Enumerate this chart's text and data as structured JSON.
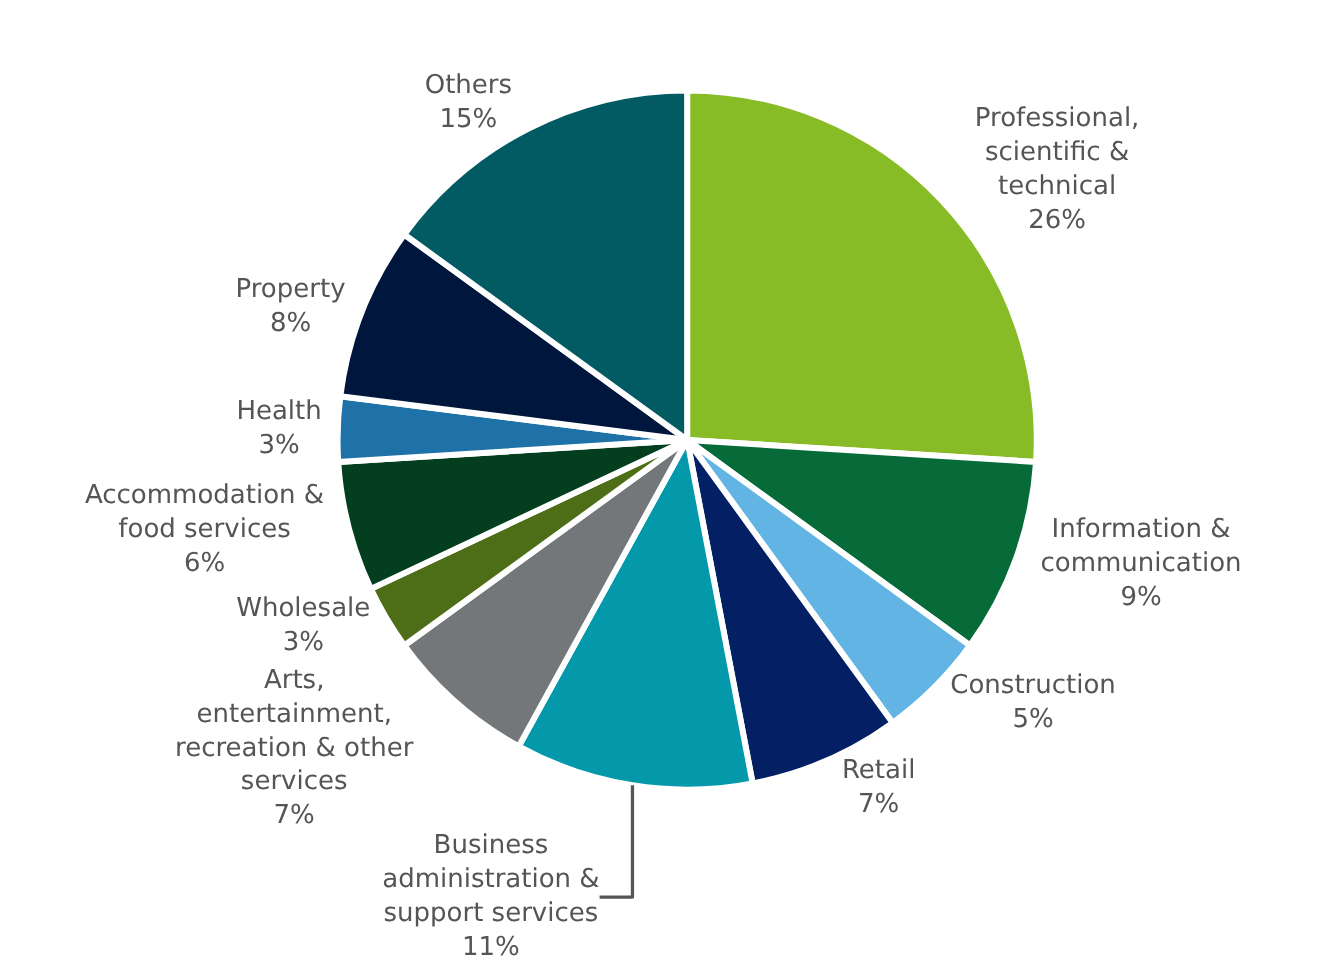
{
  "chart_data": {
    "type": "pie",
    "categories": [
      "Professional, scientific & technical",
      "Information & communication",
      "Construction",
      "Retail",
      "Business administration & support services",
      "Arts, entertainment, recreation & other services",
      "Wholesale",
      "Accommodation & food services",
      "Health",
      "Property",
      "Others"
    ],
    "values": [
      26,
      9,
      5,
      7,
      11,
      7,
      3,
      6,
      3,
      8,
      15
    ],
    "value_labels": [
      "26%",
      "9%",
      "5%",
      "7%",
      "11%",
      "7%",
      "3%",
      "6%",
      "3%",
      "8%",
      "15%"
    ],
    "colors": [
      "#88bc26",
      "#066b38",
      "#62b4e4",
      "#022063",
      "#0399aa",
      "#747779",
      "#4e6d17",
      "#033f1e",
      "#1f72a8",
      "#01163d",
      "#025b63"
    ],
    "legend": false
  }
}
